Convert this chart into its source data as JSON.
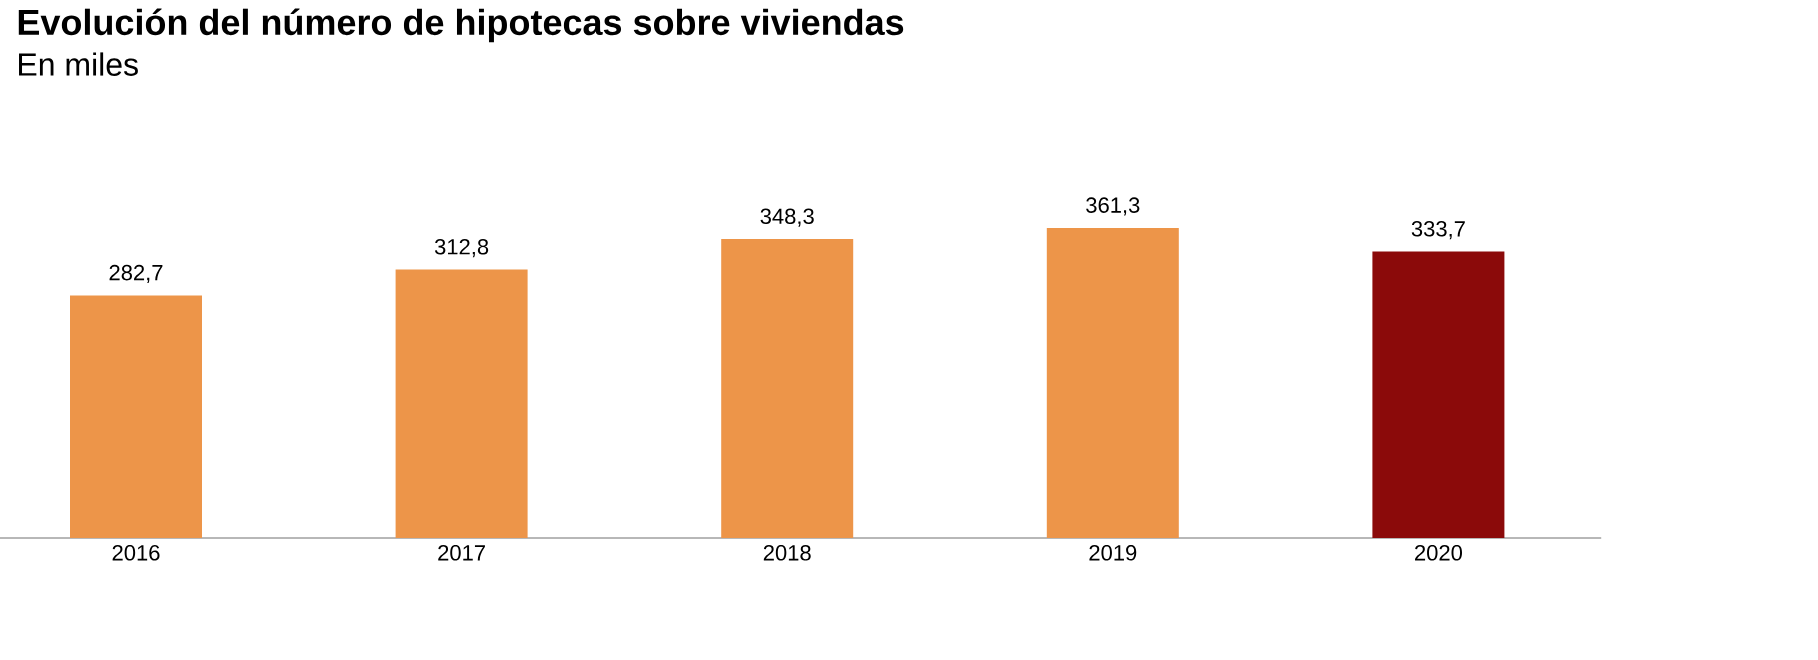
{
  "chart_data": {
    "type": "bar",
    "title": "Evolución del número de hipotecas sobre viviendas",
    "subtitle": "En miles",
    "categories": [
      "2016",
      "2017",
      "2018",
      "2019",
      "2020"
    ],
    "values": [
      282.7,
      312.8,
      348.3,
      361.3,
      333.7
    ],
    "value_labels": [
      "282,7",
      "312,8",
      "348,3",
      "361,3",
      "333,7"
    ],
    "colors": [
      "#ed9549",
      "#ed9549",
      "#ed9549",
      "#ed9549",
      "#8b0a0a"
    ]
  }
}
